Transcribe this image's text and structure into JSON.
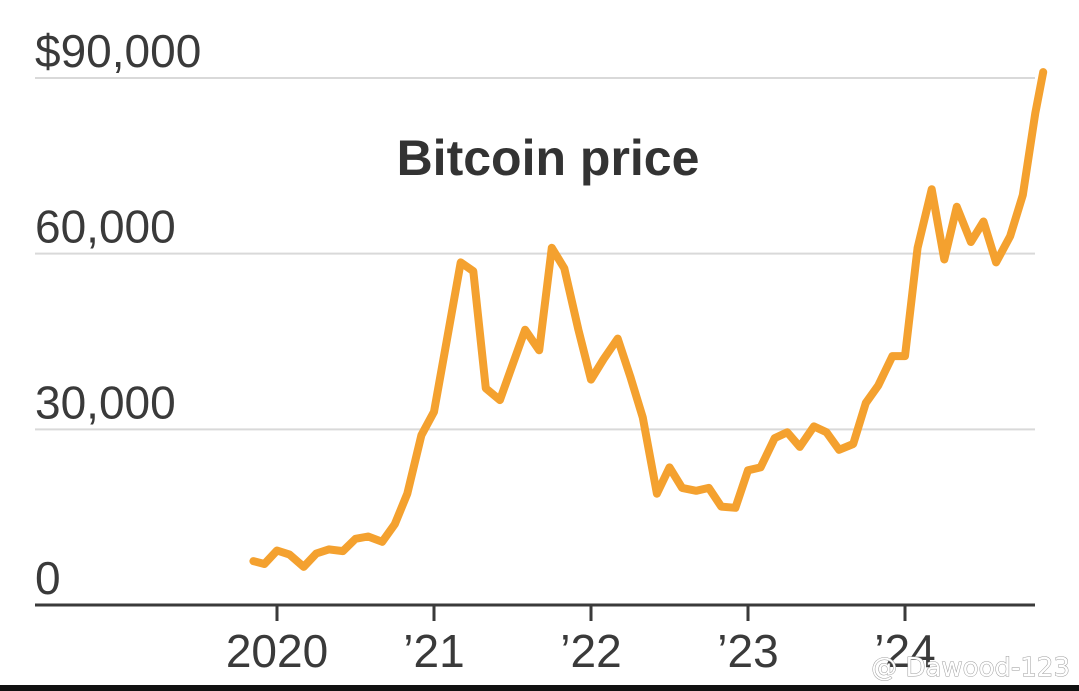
{
  "chart_data": {
    "type": "line",
    "title": "Bitcoin price",
    "xlabel": "",
    "ylabel": "",
    "xlim": [
      2019.5,
      2024.92
    ],
    "ylim": [
      0,
      90000
    ],
    "y_ticks": [
      {
        "value": 0,
        "label": "0"
      },
      {
        "value": 30000,
        "label": "30,000"
      },
      {
        "value": 60000,
        "label": "60,000"
      },
      {
        "value": 90000,
        "label": "$90,000"
      }
    ],
    "x_ticks": [
      {
        "value": 2020,
        "label": "2020"
      },
      {
        "value": 2021,
        "label": "’21"
      },
      {
        "value": 2022,
        "label": "’22"
      },
      {
        "value": 2023,
        "label": "’23"
      },
      {
        "value": 2024,
        "label": "’24"
      }
    ],
    "grid": true,
    "line_color": "#f4a12f",
    "grid_color": "#d9d9d9",
    "axis_color": "#3a3a3a",
    "series": [
      {
        "x": [
          2019.85,
          2019.92,
          2020.0,
          2020.08,
          2020.17,
          2020.25,
          2020.33,
          2020.42,
          2020.5,
          2020.58,
          2020.67,
          2020.75,
          2020.83,
          2020.92,
          2021.0,
          2021.08,
          2021.17,
          2021.25,
          2021.33,
          2021.42,
          2021.5,
          2021.58,
          2021.67,
          2021.75,
          2021.83,
          2021.92,
          2022.0,
          2022.08,
          2022.17,
          2022.25,
          2022.33,
          2022.42,
          2022.5,
          2022.58,
          2022.67,
          2022.75,
          2022.83,
          2022.92,
          2023.0,
          2023.08,
          2023.17,
          2023.25,
          2023.33,
          2023.42,
          2023.5,
          2023.58,
          2023.67,
          2023.75,
          2023.83,
          2023.92,
          2024.0,
          2024.08,
          2024.17,
          2024.25,
          2024.33,
          2024.42,
          2024.5,
          2024.58,
          2024.67,
          2024.75,
          2024.83,
          2024.88
        ],
        "values": [
          7500,
          7000,
          9300,
          8600,
          6500,
          8800,
          9500,
          9200,
          11300,
          11700,
          10800,
          13800,
          19000,
          29000,
          33000,
          45000,
          58500,
          57000,
          37000,
          35000,
          41000,
          47000,
          43500,
          61000,
          57500,
          47000,
          38500,
          42000,
          45500,
          39000,
          32000,
          19000,
          23500,
          20000,
          19500,
          20000,
          16800,
          16600,
          23000,
          23500,
          28500,
          29500,
          27000,
          30500,
          29500,
          26500,
          27500,
          34500,
          37500,
          42500,
          42500,
          61000,
          71000,
          59000,
          68000,
          62000,
          65500,
          58500,
          63000,
          70000,
          84000,
          91000
        ]
      }
    ],
    "watermark": "@ Dawood-123"
  }
}
